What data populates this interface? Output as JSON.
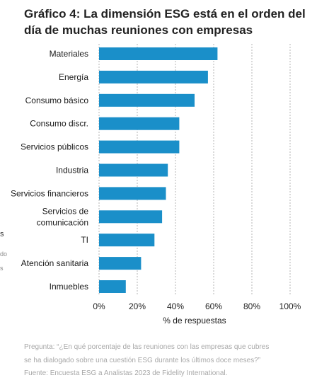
{
  "title": "Gráfico 4: La dimensión ESG está en el orden del día de muchas reuniones con empresas",
  "chart_data": {
    "type": "bar",
    "orientation": "horizontal",
    "categories": [
      [
        "Materiales"
      ],
      [
        "Energía"
      ],
      [
        "Consumo básico"
      ],
      [
        "Consumo discr."
      ],
      [
        "Servicios públicos"
      ],
      [
        "Industria"
      ],
      [
        "Servicios financieros"
      ],
      [
        "Servicios de",
        "comunicación"
      ],
      [
        "TI"
      ],
      [
        "Atención sanitaria"
      ],
      [
        "Inmuebles"
      ]
    ],
    "values": [
      62,
      57,
      50,
      42,
      42,
      36,
      35,
      33,
      29,
      22,
      14
    ],
    "xlabel": "% de respuestas",
    "xlim": [
      0,
      100
    ],
    "xticks": [
      "0%",
      "20%",
      "40%",
      "60%",
      "80%",
      "100%"
    ],
    "bar_color": "#1a8fc9",
    "grid": "vertical-dashed"
  },
  "stray_marks": [
    "s",
    "do",
    "s"
  ],
  "footnotes": [
    "Pregunta: “¿En qué porcentaje de las reuniones con las empresas que cubres",
    "se ha dialogado sobre una cuestión ESG durante los últimos doce meses?”",
    "Fuente: Encuesta ESG a Analistas 2023 de Fidelity International."
  ]
}
